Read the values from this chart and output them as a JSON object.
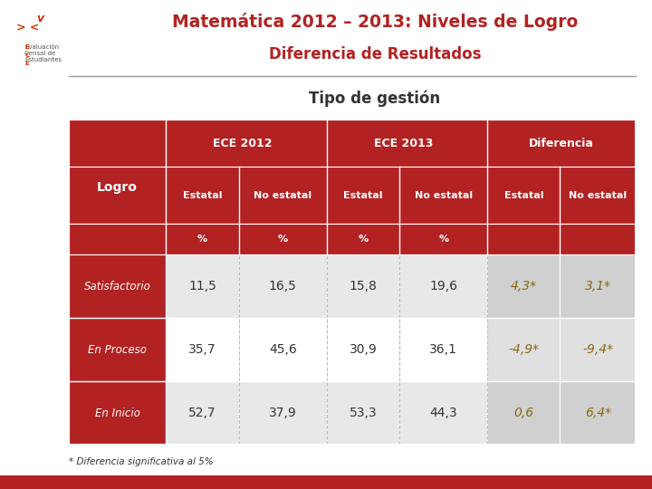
{
  "title_line1": "Matemática 2012 – 2013: Niveles de Logro",
  "title_line2": "Diferencia de Resultados",
  "subtitle": "Tipo de gestión",
  "title_color": "#B22222",
  "subtitle_color": "#333333",
  "bg_color": "#FFFFFF",
  "red_color": "#B22222",
  "table_bg_dark": "#B22222",
  "table_row_light": "#E8E8E8",
  "table_row_white": "#FFFFFF",
  "diff_cell_color": "#D0D0D0",
  "header_text_color": "#FFFFFF",
  "data_text_color": "#333333",
  "diff_text_color": "#8B6914",
  "footer_text": "* Diferencia significativa al 5%",
  "separator_line_color": "#999999",
  "bottom_red": "#B22222",
  "data": [
    [
      "11,5",
      "16,5",
      "15,8",
      "19,6",
      "4,3*",
      "3,1*"
    ],
    [
      "35,7",
      "45,6",
      "30,9",
      "36,1",
      "-4,9*",
      "-9,4*"
    ],
    [
      "52,7",
      "37,9",
      "53,3",
      "44,3",
      "0,6",
      "6,4*"
    ]
  ]
}
